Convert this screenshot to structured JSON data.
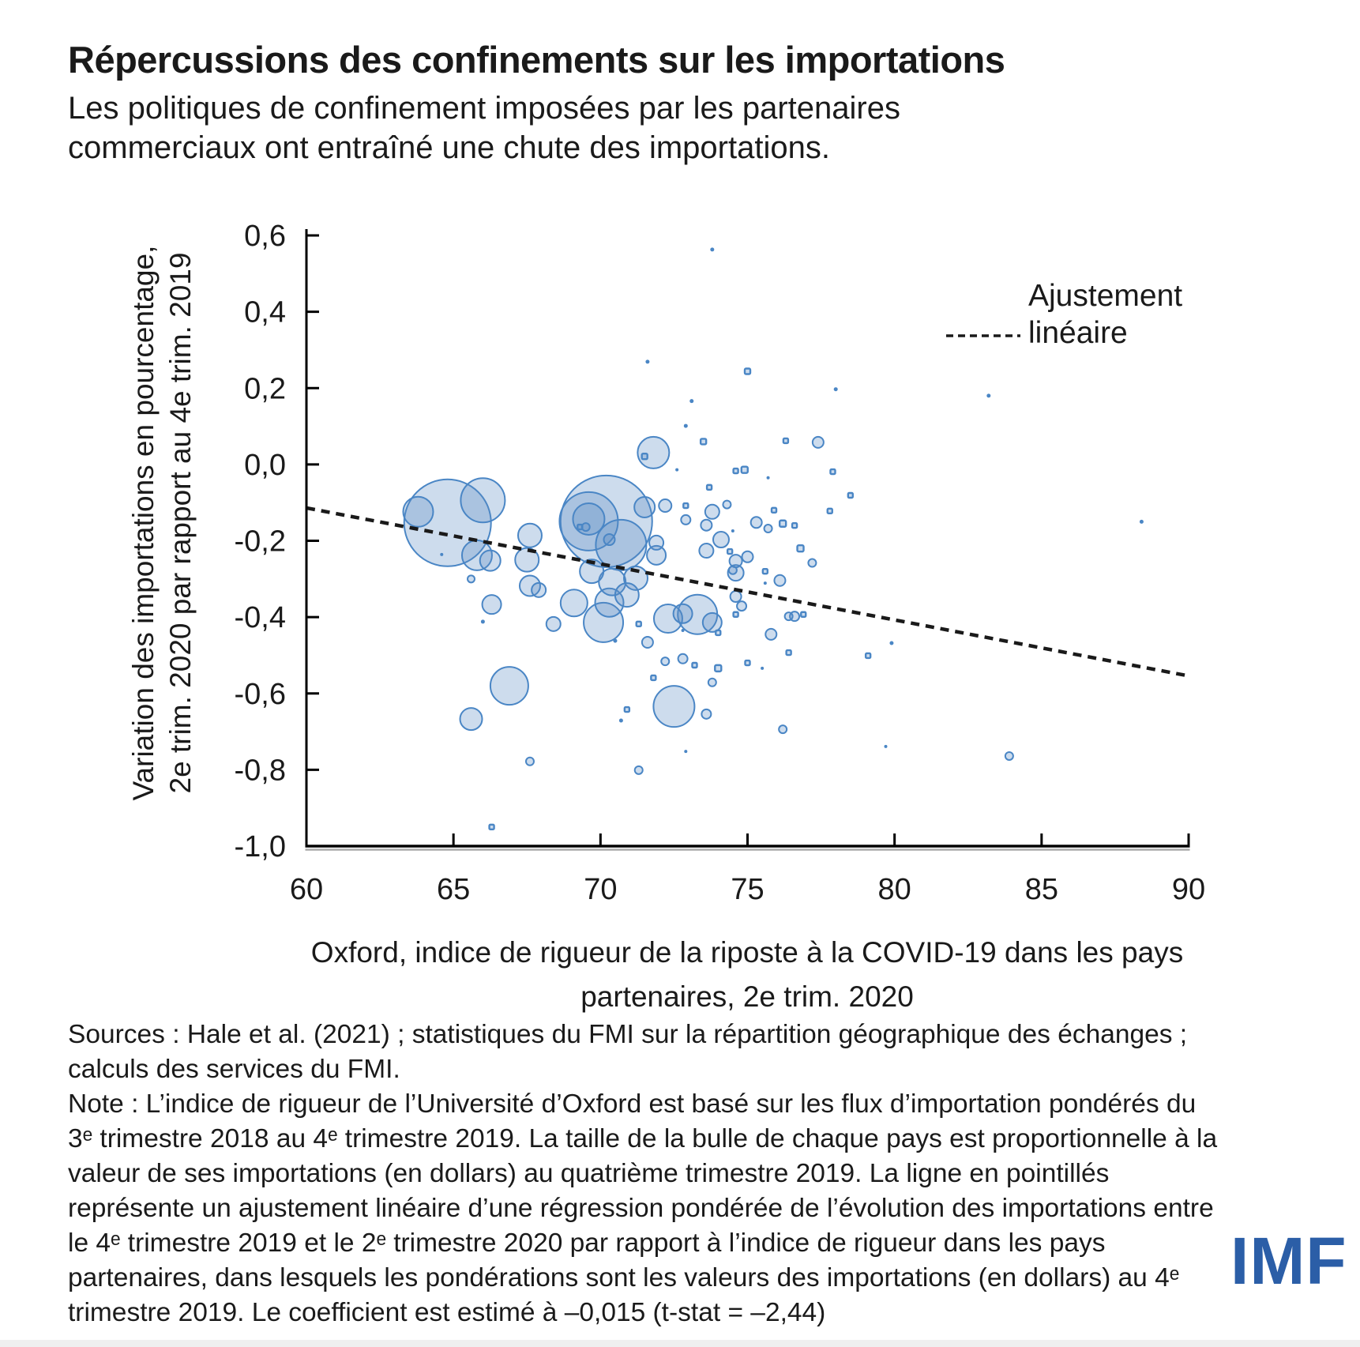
{
  "header": {
    "title": "Répercussions des confinements sur les importations",
    "subtitle": "Les politiques de confinement imposées par les partenaires commerciaux ont entraîné une chute des importations."
  },
  "chart_data": {
    "type": "scatter",
    "title": "Répercussions des confinements sur les importations",
    "xlabel": "Oxford, indice de rigueur de la riposte à la COVID-19 dans les pays partenaires, 2e trim. 2020",
    "ylabel_line1": "Variation des importations en pourcentage,",
    "ylabel_line2": "2e trim. 2020 par rapport au 4e trim. 2019",
    "xlim": [
      60,
      90
    ],
    "ylim": [
      -1.0,
      0.6
    ],
    "x_ticks": [
      60,
      65,
      70,
      75,
      80,
      85,
      90
    ],
    "x_tick_labels": [
      "60",
      "65",
      "70",
      "75",
      "80",
      "85",
      "90"
    ],
    "y_ticks": [
      0.6,
      0.4,
      0.2,
      0.0,
      -0.2,
      -0.4,
      -0.6,
      -0.8,
      -1.0
    ],
    "y_tick_labels": [
      "0,6",
      "0,4",
      "0,2",
      "0,0",
      "-0,2",
      "-0,4",
      "-0,6",
      "-0,8",
      "-1,0"
    ],
    "grid": false,
    "legend_position": "top-right",
    "legend_lines": [
      "Ajustement",
      "linéaire"
    ],
    "trend_line": {
      "style": "dashed",
      "x_start": 60,
      "y_start": -0.114,
      "x_end": 90,
      "y_end": -0.554,
      "coefficient": -0.015,
      "t_stat": -2.44
    },
    "bubbles_format": "[oxford_stringency_x, import_change_y, bubble_radius_px]",
    "bubbles": [
      [
        73.8,
        0.563,
        2.5
      ],
      [
        71.6,
        0.269,
        2.5
      ],
      [
        75.0,
        0.244,
        3.5
      ],
      [
        78.0,
        0.197,
        2.5
      ],
      [
        83.2,
        0.18,
        2.5
      ],
      [
        73.1,
        0.166,
        2.5
      ],
      [
        72.9,
        0.101,
        2.5
      ],
      [
        73.5,
        0.06,
        3.5
      ],
      [
        76.3,
        0.062,
        3
      ],
      [
        77.4,
        0.058,
        7
      ],
      [
        71.8,
        0.031,
        20
      ],
      [
        71.5,
        0.021,
        3.5
      ],
      [
        72.6,
        -0.014,
        2
      ],
      [
        74.6,
        -0.017,
        3
      ],
      [
        74.9,
        -0.014,
        4
      ],
      [
        75.7,
        -0.035,
        2
      ],
      [
        77.9,
        -0.019,
        3
      ],
      [
        78.5,
        -0.081,
        3
      ],
      [
        77.8,
        -0.122,
        3
      ],
      [
        64.8,
        -0.153,
        55
      ],
      [
        63.8,
        -0.124,
        19
      ],
      [
        66.0,
        -0.094,
        28
      ],
      [
        65.8,
        -0.238,
        19
      ],
      [
        66.25,
        -0.252,
        13
      ],
      [
        64.6,
        -0.236,
        2
      ],
      [
        65.6,
        -0.3,
        4.5
      ],
      [
        66.3,
        -0.367,
        12
      ],
      [
        66.0,
        -0.412,
        2.5
      ],
      [
        67.6,
        -0.186,
        15
      ],
      [
        67.5,
        -0.25,
        15
      ],
      [
        67.6,
        -0.318,
        13
      ],
      [
        67.9,
        -0.329,
        9
      ],
      [
        68.4,
        -0.418,
        9
      ],
      [
        69.1,
        -0.363,
        17
      ],
      [
        70.2,
        -0.149,
        58
      ],
      [
        69.6,
        -0.149,
        37
      ],
      [
        69.6,
        -0.143,
        20
      ],
      [
        70.7,
        -0.211,
        32
      ],
      [
        71.5,
        -0.112,
        13
      ],
      [
        72.2,
        -0.108,
        8
      ],
      [
        69.3,
        -0.164,
        3
      ],
      [
        69.5,
        -0.164,
        5
      ],
      [
        70.3,
        -0.197,
        7
      ],
      [
        71.9,
        -0.205,
        9
      ],
      [
        71.9,
        -0.238,
        12
      ],
      [
        69.7,
        -0.28,
        15
      ],
      [
        70.4,
        -0.308,
        17
      ],
      [
        71.2,
        -0.298,
        15
      ],
      [
        70.9,
        -0.342,
        15
      ],
      [
        70.3,
        -0.362,
        18
      ],
      [
        70.1,
        -0.414,
        25
      ],
      [
        71.3,
        -0.418,
        3
      ],
      [
        72.3,
        -0.404,
        18
      ],
      [
        72.8,
        -0.391,
        12
      ],
      [
        73.3,
        -0.393,
        25
      ],
      [
        73.8,
        -0.414,
        12
      ],
      [
        72.8,
        -0.435,
        2
      ],
      [
        74.0,
        -0.441,
        3
      ],
      [
        72.9,
        -0.145,
        6
      ],
      [
        72.9,
        -0.108,
        3
      ],
      [
        73.8,
        -0.124,
        9
      ],
      [
        73.7,
        -0.06,
        3
      ],
      [
        73.6,
        -0.159,
        7
      ],
      [
        73.6,
        -0.226,
        9
      ],
      [
        74.1,
        -0.197,
        10
      ],
      [
        74.5,
        -0.174,
        2
      ],
      [
        74.4,
        -0.228,
        3
      ],
      [
        74.6,
        -0.253,
        8
      ],
      [
        75.0,
        -0.242,
        7
      ],
      [
        74.6,
        -0.284,
        10
      ],
      [
        74.5,
        -0.277,
        5
      ],
      [
        75.6,
        -0.28,
        3
      ],
      [
        75.6,
        -0.311,
        2
      ],
      [
        76.1,
        -0.304,
        7
      ],
      [
        74.6,
        -0.346,
        7
      ],
      [
        74.8,
        -0.371,
        6
      ],
      [
        74.6,
        -0.393,
        3
      ],
      [
        76.4,
        -0.398,
        5
      ],
      [
        76.6,
        -0.398,
        6
      ],
      [
        76.9,
        -0.393,
        3
      ],
      [
        75.3,
        -0.152,
        7
      ],
      [
        75.7,
        -0.168,
        5
      ],
      [
        76.2,
        -0.155,
        4
      ],
      [
        75.9,
        -0.12,
        3
      ],
      [
        76.8,
        -0.22,
        4
      ],
      [
        77.2,
        -0.258,
        5
      ],
      [
        76.6,
        -0.16,
        3
      ],
      [
        74.3,
        -0.105,
        5
      ],
      [
        70.5,
        -0.462,
        2.5
      ],
      [
        71.6,
        -0.466,
        7
      ],
      [
        66.9,
        -0.58,
        24
      ],
      [
        65.6,
        -0.667,
        14
      ],
      [
        67.6,
        -0.778,
        5
      ],
      [
        66.3,
        -0.95,
        3
      ],
      [
        71.3,
        -0.801,
        5
      ],
      [
        70.7,
        -0.671,
        2.5
      ],
      [
        70.9,
        -0.642,
        3
      ],
      [
        72.5,
        -0.634,
        26
      ],
      [
        73.6,
        -0.654,
        6
      ],
      [
        71.8,
        -0.559,
        3
      ],
      [
        72.2,
        -0.516,
        5
      ],
      [
        72.8,
        -0.509,
        6
      ],
      [
        73.2,
        -0.526,
        3
      ],
      [
        73.8,
        -0.571,
        5
      ],
      [
        72.9,
        -0.752,
        2
      ],
      [
        75.8,
        -0.445,
        7
      ],
      [
        76.4,
        -0.493,
        3
      ],
      [
        75.0,
        -0.52,
        3
      ],
      [
        75.5,
        -0.534,
        2
      ],
      [
        74.0,
        -0.534,
        4
      ],
      [
        79.1,
        -0.501,
        3
      ],
      [
        79.9,
        -0.468,
        2.5
      ],
      [
        76.2,
        -0.694,
        5
      ],
      [
        79.7,
        -0.739,
        2
      ],
      [
        83.9,
        -0.764,
        5
      ],
      [
        88.4,
        -0.15,
        2.5
      ]
    ]
  },
  "footer": {
    "source_lines": [
      "Sources : Hale et al. (2021) ; statistiques du FMI sur la répartition géographique  des échanges  ;",
      "calculs des services du FMI.",
      "Note : L’indice de rigueur de l’Université d’Oxford est basé sur les flux d’importation pondérés du",
      "3ᵉ trimestre 2018 au 4ᵉ trimestre 2019. La taille de la bulle de chaque pays est proportionnelle à la",
      "valeur de ses importations (en dollars) au quatrième trimestre 2019. La ligne en pointillés",
      "représente un ajustement linéaire d’une régression pondérée de l’évolution des importations entre",
      "le 4ᵉ trimestre 2019 et le 2ᵉ trimestre 2020 par rapport à l’indice de rigueur dans les pays",
      "partenaires, dans lesquels les pondérations sont les valeurs des importations (en dollars) au 4ᵉ",
      "trimestre 2019. Le coefficient est estimé à –0,015 (t-stat = –2,44)"
    ],
    "logo": "IMF"
  },
  "colors": {
    "text": "#1a1a1a",
    "axis": "#000000",
    "axis_shadow": "#aaaaaa",
    "bubble_stroke": "#4a86c5",
    "bubble_fill": "rgba(90,140,195,0.30)",
    "trend": "#1a1a1a",
    "logo_blue": "#2b5ea7"
  }
}
